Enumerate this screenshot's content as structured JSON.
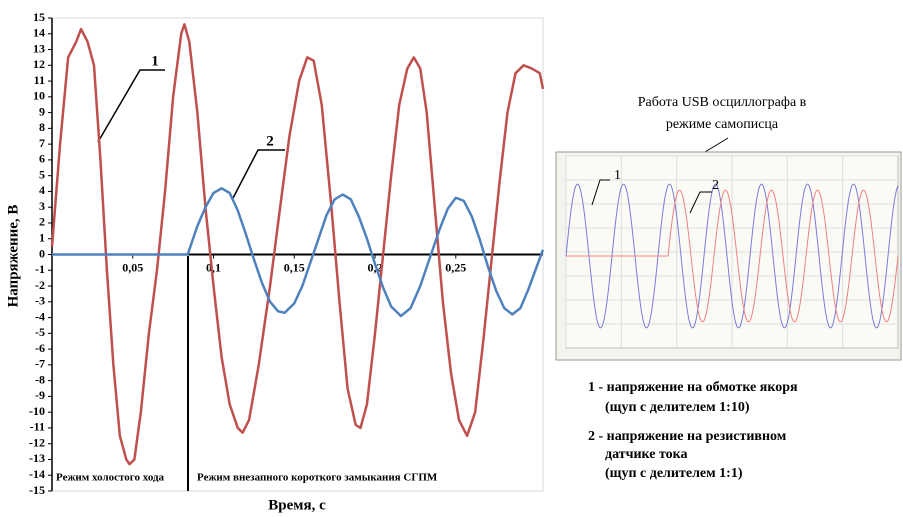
{
  "chart_data": {
    "type": "line",
    "xlabel": "Время, с",
    "ylabel": "Напряжение, В",
    "xlim": [
      0,
      0.304
    ],
    "ylim": [
      -15,
      15
    ],
    "xticks": [
      {
        "value": 0.05,
        "label": "0,05"
      },
      {
        "value": 0.1,
        "label": "0,1"
      },
      {
        "value": 0.15,
        "label": "0,15"
      },
      {
        "value": 0.2,
        "label": "0,2"
      },
      {
        "value": 0.25,
        "label": "0,25"
      }
    ],
    "yticks": [
      -15,
      -14,
      -13,
      -12,
      -11,
      -10,
      -9,
      -8,
      -7,
      -6,
      -5,
      -4,
      -3,
      -2,
      -1,
      0,
      1,
      2,
      3,
      4,
      5,
      6,
      7,
      8,
      9,
      10,
      11,
      12,
      13,
      14,
      15
    ],
    "grid": false,
    "series": [
      {
        "name": "1",
        "color": "#c0504d",
        "x": [
          0,
          0.005,
          0.01,
          0.015,
          0.018,
          0.022,
          0.026,
          0.03,
          0.034,
          0.038,
          0.042,
          0.046,
          0.048,
          0.051,
          0.055,
          0.06,
          0.065,
          0.07,
          0.075,
          0.08,
          0.082,
          0.085,
          0.09,
          0.095,
          0.1,
          0.105,
          0.11,
          0.115,
          0.118,
          0.122,
          0.128,
          0.135,
          0.14,
          0.147,
          0.153,
          0.158,
          0.162,
          0.167,
          0.173,
          0.178,
          0.183,
          0.188,
          0.191,
          0.195,
          0.2,
          0.205,
          0.21,
          0.215,
          0.22,
          0.224,
          0.228,
          0.232,
          0.237,
          0.242,
          0.247,
          0.252,
          0.257,
          0.262,
          0.267,
          0.272,
          0.277,
          0.282,
          0.287,
          0.292,
          0.297,
          0.302,
          0.304
        ],
        "values": [
          0.5,
          7,
          12.5,
          13.5,
          14.3,
          13.5,
          12,
          6,
          -1,
          -7,
          -11.5,
          -13,
          -13.3,
          -13,
          -10,
          -5,
          -1,
          4,
          10,
          14,
          14.6,
          13.5,
          9,
          3,
          -2,
          -6.5,
          -9.5,
          -11,
          -11.3,
          -10.5,
          -7,
          -2,
          2,
          7.5,
          11,
          12.5,
          12.3,
          9.5,
          3,
          -3,
          -8.5,
          -10.8,
          -11,
          -9.5,
          -5,
          0,
          5,
          9.5,
          11.8,
          12.5,
          11.8,
          9,
          3,
          -3,
          -7.5,
          -10.5,
          -11.5,
          -10,
          -5.5,
          -0.5,
          4.5,
          9,
          11.5,
          12,
          11.8,
          11.5,
          10.5
        ]
      },
      {
        "name": "2",
        "color": "#4f81bd",
        "x": [
          0,
          0.084,
          0.09,
          0.095,
          0.1,
          0.105,
          0.11,
          0.115,
          0.12,
          0.125,
          0.13,
          0.135,
          0.14,
          0.144,
          0.15,
          0.155,
          0.16,
          0.165,
          0.17,
          0.175,
          0.18,
          0.185,
          0.19,
          0.195,
          0.2,
          0.205,
          0.21,
          0.216,
          0.222,
          0.228,
          0.234,
          0.24,
          0.245,
          0.25,
          0.255,
          0.26,
          0.265,
          0.27,
          0.275,
          0.28,
          0.285,
          0.29,
          0.295,
          0.3,
          0.304
        ],
        "values": [
          0,
          0,
          1.8,
          3,
          3.9,
          4.2,
          3.9,
          2.8,
          1.3,
          -0.3,
          -1.8,
          -3,
          -3.6,
          -3.7,
          -3.1,
          -2,
          -0.5,
          1,
          2.5,
          3.5,
          3.8,
          3.5,
          2.4,
          1,
          -0.6,
          -2.1,
          -3.3,
          -3.9,
          -3.4,
          -2,
          -0.2,
          1.6,
          2.9,
          3.6,
          3.4,
          2.4,
          0.9,
          -0.8,
          -2.3,
          -3.4,
          -3.8,
          -3.4,
          -2.2,
          -0.8,
          0.3
        ]
      }
    ],
    "annotations": [
      "Режим холостого хода",
      "Режим внезапного короткого замыкания СГПМ"
    ]
  },
  "inset": {
    "title": [
      "Работа USB  осциллографа в",
      "режиме самописца"
    ],
    "labels": [
      "1",
      "2"
    ]
  },
  "notes": [
    "1 - напряжение на обмотке якоря",
    "(щуп с делителем 1:10)",
    "2 - напряжение на резистивном",
    "датчике тока",
    "(щуп с делителем 1:1)"
  ]
}
